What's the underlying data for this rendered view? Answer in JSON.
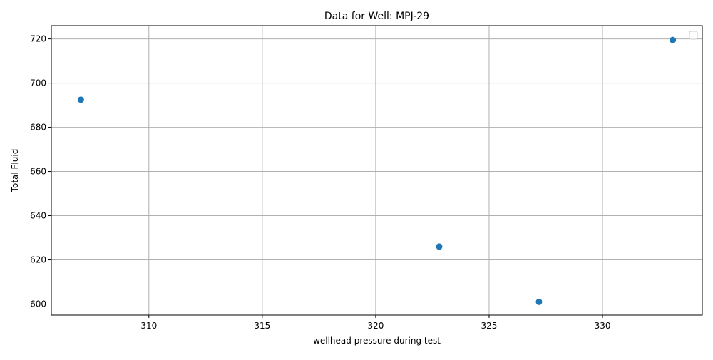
{
  "chart_data": {
    "type": "scatter",
    "title": "Data for Well: MPJ-29",
    "xlabel": "wellhead pressure during test",
    "ylabel": "Total Fluid",
    "xlim": [
      305.7,
      334.4
    ],
    "ylim": [
      595,
      726
    ],
    "xticks": [
      310,
      315,
      320,
      325,
      330
    ],
    "yticks": [
      600,
      620,
      640,
      660,
      680,
      700,
      720
    ],
    "grid": true,
    "legend": "top-right, empty",
    "marker_color": "#1f77b4",
    "points": [
      {
        "x": 307.0,
        "y": 692.5
      },
      {
        "x": 322.8,
        "y": 626.0
      },
      {
        "x": 327.2,
        "y": 601.0
      },
      {
        "x": 333.1,
        "y": 719.5
      }
    ]
  }
}
